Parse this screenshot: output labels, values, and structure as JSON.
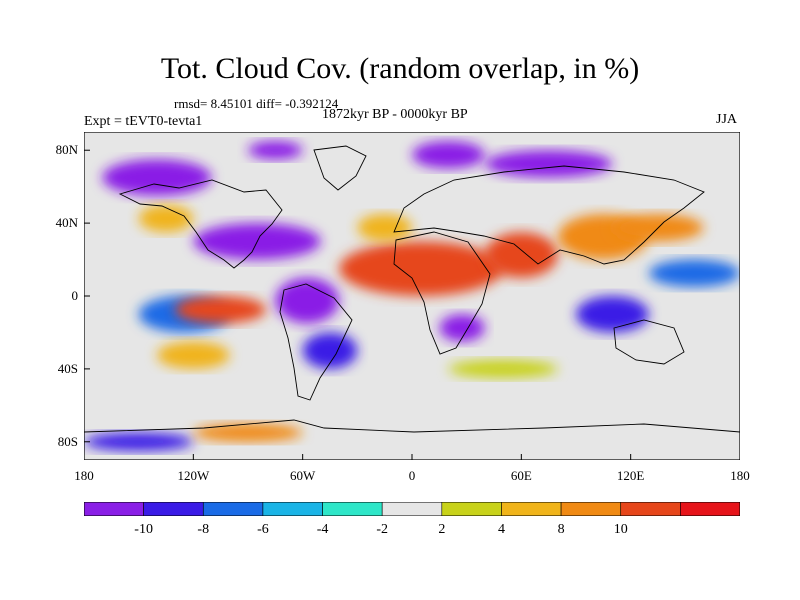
{
  "title": "Tot. Cloud Cov. (random overlap, in %)",
  "stats": "rmsd= 8.45101 diff= -0.392124",
  "period": "1872kyr BP - 0000kyr BP",
  "experiment": "Expt = tEVT0-tevta1",
  "season": "JJA",
  "map": {
    "lon_range": [
      -180,
      180
    ],
    "lat_range": [
      -90,
      90
    ],
    "background_color": "#e6e6e6",
    "y_ticks": [
      {
        "lat": 80,
        "label": "80N"
      },
      {
        "lat": 40,
        "label": "40N"
      },
      {
        "lat": 0,
        "label": "0"
      },
      {
        "lat": -40,
        "label": "40S"
      },
      {
        "lat": -80,
        "label": "80S"
      }
    ],
    "x_ticks": [
      {
        "lon": -180,
        "label": "180"
      },
      {
        "lon": -120,
        "label": "120W"
      },
      {
        "lon": -60,
        "label": "60W"
      },
      {
        "lon": 0,
        "label": "0"
      },
      {
        "lon": 60,
        "label": "60E"
      },
      {
        "lon": 120,
        "label": "120E"
      },
      {
        "lon": 180,
        "label": "180"
      }
    ]
  },
  "colorbar": {
    "colors": [
      "#8a1fe6",
      "#3a1be6",
      "#1a6be6",
      "#1ab4e6",
      "#2ee6c8",
      "#e6e6e6",
      "#c8d21a",
      "#f0b41a",
      "#f08a14",
      "#e6461a",
      "#e6141a"
    ],
    "labels": [
      "-10",
      "-8",
      "-6",
      "-4",
      "-2",
      "2",
      "4",
      "8",
      "10"
    ]
  },
  "chart_data": {
    "type": "heatmap",
    "title": "Tot. Cloud Cov. (random overlap, in %)",
    "subtitle": "1872kyr BP - 0000kyr BP",
    "season": "JJA",
    "rmsd": 8.45101,
    "diff": -0.392124,
    "levels": [
      -10,
      -8,
      -6,
      -4,
      -2,
      2,
      4,
      8,
      10
    ],
    "regions": [
      {
        "lon": [
          -40,
          50
        ],
        "lat": [
          0,
          30
        ],
        "value": 12
      },
      {
        "lon": [
          -30,
          0
        ],
        "lat": [
          30,
          45
        ],
        "value": 6
      },
      {
        "lon": [
          40,
          80
        ],
        "lat": [
          10,
          35
        ],
        "value": 11
      },
      {
        "lon": [
          80,
          130
        ],
        "lat": [
          20,
          45
        ],
        "value": 9
      },
      {
        "lon": [
          110,
          160
        ],
        "lat": [
          30,
          45
        ],
        "value": 10
      },
      {
        "lon": [
          -150,
          -100
        ],
        "lat": [
          -20,
          0
        ],
        "value": -7
      },
      {
        "lon": [
          -130,
          -80
        ],
        "lat": [
          -15,
          0
        ],
        "value": 12
      },
      {
        "lon": [
          -75,
          -40
        ],
        "lat": [
          -15,
          10
        ],
        "value": -11
      },
      {
        "lon": [
          -60,
          -30
        ],
        "lat": [
          -40,
          -20
        ],
        "value": -9
      },
      {
        "lon": [
          -120,
          -50
        ],
        "lat": [
          20,
          40
        ],
        "value": -11
      },
      {
        "lon": [
          -170,
          -110
        ],
        "lat": [
          55,
          75
        ],
        "value": -11
      },
      {
        "lon": [
          -90,
          -60
        ],
        "lat": [
          75,
          85
        ],
        "value": -10
      },
      {
        "lon": [
          0,
          40
        ],
        "lat": [
          70,
          85
        ],
        "value": -11
      },
      {
        "lon": [
          40,
          110
        ],
        "lat": [
          65,
          80
        ],
        "value": -11
      },
      {
        "lon": [
          90,
          130
        ],
        "lat": [
          -20,
          0
        ],
        "value": -8
      },
      {
        "lon": [
          15,
          40
        ],
        "lat": [
          -25,
          -10
        ],
        "value": -10
      },
      {
        "lon": [
          130,
          180
        ],
        "lat": [
          5,
          20
        ],
        "value": -6
      },
      {
        "lon": [
          -150,
          -120
        ],
        "lat": [
          35,
          50
        ],
        "value": 8
      },
      {
        "lon": [
          -140,
          -100
        ],
        "lat": [
          -40,
          -25
        ],
        "value": 5
      },
      {
        "lon": [
          20,
          80
        ],
        "lat": [
          -45,
          -35
        ],
        "value": 4
      },
      {
        "lon": [
          -180,
          -120
        ],
        "lat": [
          -85,
          -75
        ],
        "value": -8
      },
      {
        "lon": [
          -120,
          -60
        ],
        "lat": [
          -80,
          -70
        ],
        "value": 10
      }
    ]
  }
}
